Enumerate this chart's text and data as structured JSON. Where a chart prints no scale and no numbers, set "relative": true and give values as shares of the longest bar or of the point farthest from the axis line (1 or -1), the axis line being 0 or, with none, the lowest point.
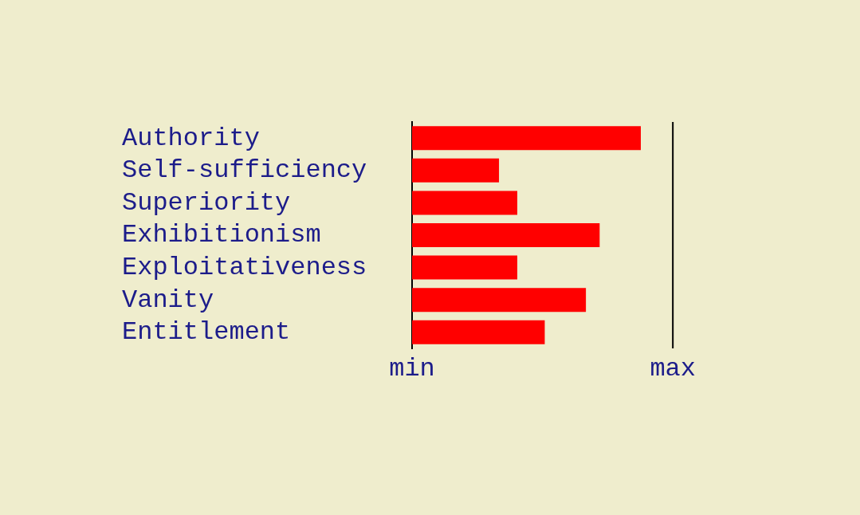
{
  "chart_data": {
    "type": "bar",
    "orientation": "horizontal",
    "relative": true,
    "categories": [
      "Authority",
      "Self-sufficiency",
      "Superiority",
      "Exhibitionism",
      "Exploitativeness",
      "Vanity",
      "Entitlement"
    ],
    "values": [
      1,
      0.38,
      0.46,
      0.82,
      0.46,
      0.76,
      0.58
    ],
    "color": "#ff0000",
    "annotations": [
      "min"
    ],
    "ref_lines": [
      {
        "axis": "x",
        "value": 1.14,
        "label": "max",
        "color": "#000000"
      }
    ]
  }
}
